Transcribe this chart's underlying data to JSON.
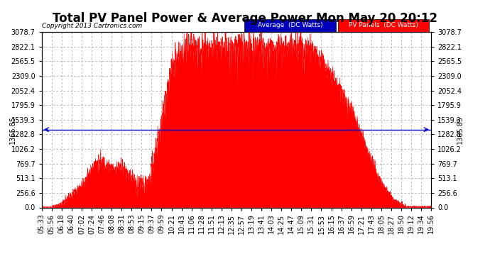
{
  "title": "Total PV Panel Power & Average Power Mon May 20 20:12",
  "copyright": "Copyright 2013 Cartronics.com",
  "legend_avg_label": "Average  (DC Watts)",
  "legend_pv_label": "PV Panels  (DC Watts)",
  "avg_color": "#0000cc",
  "pv_color": "#ff0000",
  "avg_bg": "#0000bb",
  "pv_bg": "#ff0000",
  "legend_text_color": "#ffffff",
  "average_value": 1365.85,
  "ymax": 3078.7,
  "ymin": 0.0,
  "yticks": [
    0.0,
    256.6,
    513.1,
    769.7,
    1026.2,
    1282.8,
    1539.3,
    1795.9,
    2052.4,
    2309.0,
    2565.5,
    2822.1,
    3078.7
  ],
  "ytick_labels": [
    "0.0",
    "256.6",
    "513.1",
    "769.7",
    "1026.2",
    "1282.8",
    "1539.3",
    "1795.9",
    "2052.4",
    "2309.0",
    "2565.5",
    "2822.1",
    "3078.7"
  ],
  "xtick_labels": [
    "05:33",
    "05:56",
    "06:18",
    "06:40",
    "07:02",
    "07:24",
    "07:46",
    "08:08",
    "08:31",
    "08:53",
    "09:15",
    "09:37",
    "09:59",
    "10:21",
    "10:43",
    "11:06",
    "11:28",
    "11:51",
    "12:13",
    "12:35",
    "12:57",
    "13:19",
    "13:41",
    "14:03",
    "14:25",
    "14:47",
    "15:09",
    "15:31",
    "15:53",
    "16:15",
    "16:37",
    "16:59",
    "17:21",
    "17:43",
    "18:05",
    "18:27",
    "18:50",
    "19:12",
    "19:34",
    "19:56"
  ],
  "background_color": "#ffffff",
  "plot_bg": "#ffffff",
  "grid_color": "#aaaaaa",
  "title_fontsize": 12,
  "tick_fontsize": 7
}
